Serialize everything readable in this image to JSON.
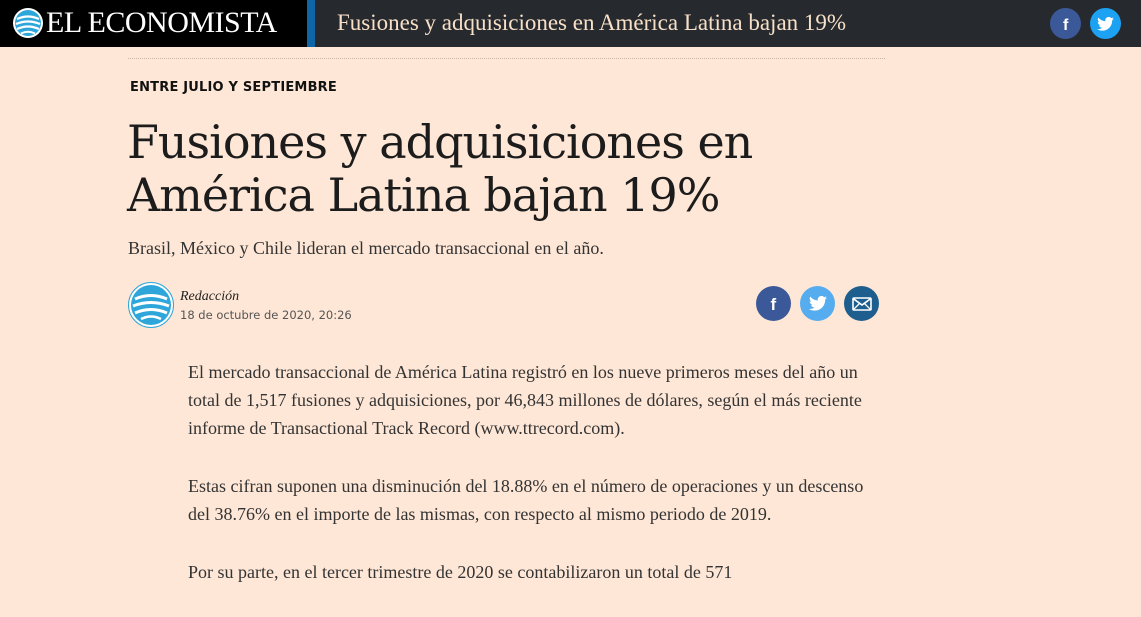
{
  "header": {
    "logo_text": "EL ECONOMISTA",
    "title": "Fusiones y adquisiciones en América Latina bajan 19%",
    "social": [
      {
        "icon": "facebook-icon",
        "glyph": "f"
      },
      {
        "icon": "twitter-icon"
      }
    ]
  },
  "article": {
    "kicker": "ENTRE JULIO Y SEPTIEMBRE",
    "headline": "Fusiones y adquisiciones en América Latina bajan 19%",
    "subheadline": "Brasil, México y Chile lideran el mercado transaccional en el año.",
    "author": "Redacción",
    "date": "18 de octubre de 2020, 20:26",
    "share": [
      {
        "icon": "facebook-icon",
        "glyph": "f"
      },
      {
        "icon": "twitter-icon"
      },
      {
        "icon": "email-icon"
      }
    ],
    "paragraphs": [
      "El mercado transaccional de América Latina registró en los nueve primeros meses del año un total de 1,517 fusiones y adquisiciones, por 46,843 millones de dólares, según el más reciente informe de Transactional Track Record (www.ttrecord.com).",
      "Estas cifran suponen una disminución del 18.88% en el número de operaciones y un descenso del 38.76% en el importe de las mismas, con respecto al mismo periodo de 2019.",
      "Por su parte, en el tercer trimestre de 2020 se contabilizaron un total de 571"
    ]
  },
  "colors": {
    "page_background": "#fee7d6",
    "topbar": "#262a2e",
    "accent": "#0f66a6",
    "facebook": "#3b5998",
    "twitter": "#55acee",
    "email": "#1e5e8f"
  }
}
